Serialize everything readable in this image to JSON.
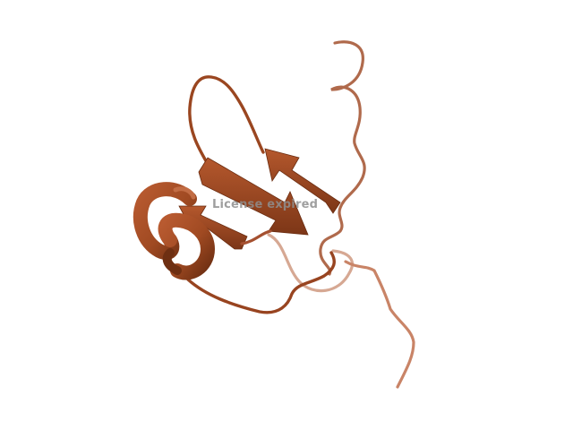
{
  "viewer": {
    "watermark_text": "License expired"
  },
  "render": {
    "background": "#ffffff",
    "cartoon_color": "#a04a22",
    "cartoon_color_dark": "#7a3516",
    "cartoon_color_faded": "#cf9b83",
    "cartoon_color_light": "#c06a42"
  }
}
